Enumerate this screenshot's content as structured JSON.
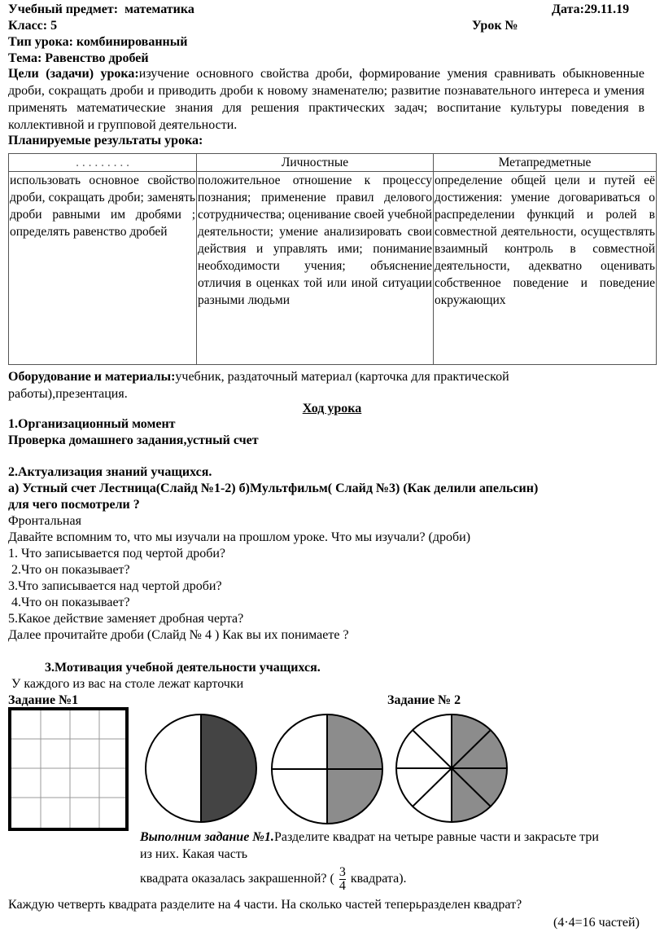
{
  "header": {
    "subject_label": "Учебный предмет:",
    "subject": "математика",
    "date": "Дата:29.11.19",
    "class": "Класс: 5",
    "lesson_no": "Урок №",
    "type": "Тип урока: комбинированный",
    "topic": "Тема: Равенство дробей",
    "goals_label": "Цели (задачи) урока:",
    "goals": "изучение  основного свойства дроби, формирование умения сравнивать обыкновенные дроби, сокращать дроби и приводить дроби к новому знаменателю;  развитие  познавательного интереса и умения применять математические знания для решения практических задач;  воспитание культуры поведения в коллективной и групповой деятельности.",
    "planned": "Планируемые результаты урока:"
  },
  "table": {
    "headers": [
      ". . . . . . . . .",
      "Личностные",
      "Метапредметные"
    ],
    "cells": [
      "использовать основное свойство дроби, сокращать дроби; заменять дроби равными им дробями ; определять равенство дробей",
      "положительное отношение к процессу познания; применение правил делового сотрудничества; оценивание своей учебной деятельности; умение анализировать свои действия и управлять ими; понимание необходимости учения; объяснение отличия в оценках той или иной ситуации разными людьми",
      "определение общей цели и путей её достижения: умение договариваться о распределении функций и ролей в совместной деятельности, осуществлять взаимный контроль в совместной деятельности, адекватно оценивать собственное поведение и поведение окружающих"
    ]
  },
  "equipment_label": "Оборудование и материалы:",
  "equipment": "учебник,  раздаточный материал (карточка для практической работы),презентация.",
  "course_title": "Ход урока",
  "lines": [
    "1.Организационный момент",
    "Проверка домашнего задания,устный счет",
    "2.Актуализация  знаний учащихся.",
    "а) Устный счет  Лестница(Слайд №1-2) б)Мультфильм( Слайд №3) (Как делили апельсин)",
    "для чего посмотрели ?",
    "Фронтальная",
    "Давайте вспомним то, что мы изучали на прошлом уроке. Что мы изучали? (дроби)",
    "1. Что записывается под чертой дроби?",
    " 2.Что он показывает?",
    "3.Что записывается над чертой дроби?",
    " 4.Что он показывает?",
    "5.Какое действие заменяет дробная черта?",
    "Далее  прочитайте дроби (Слайд №  4 ) Как вы их понимаете ?",
    "3.Мотивация учебной деятельности учащихся.",
    " У каждого из вас на столе лежат карточки"
  ],
  "task1_label": "Задание  №1",
  "task2_label": "Задание  № 2",
  "task_text": {
    "lead": "Выполним задание №1.",
    "line1": "Разделите квадрат на четыре равные части и закрасьте три",
    "line2": "из них. Какая часть",
    "line3a": "квадрата оказалась закрашенной? (",
    "num": "3",
    "den": "4",
    "line3b": "квадрата).",
    "line4": "Каждую четверть квадрата разделите на 4 части. На сколько частей теперьразделен квадрат?",
    "answer": "(4·4=16 частей)"
  },
  "colors": {
    "dark_fill": "#444444",
    "gray_fill": "#8c8c8c"
  }
}
